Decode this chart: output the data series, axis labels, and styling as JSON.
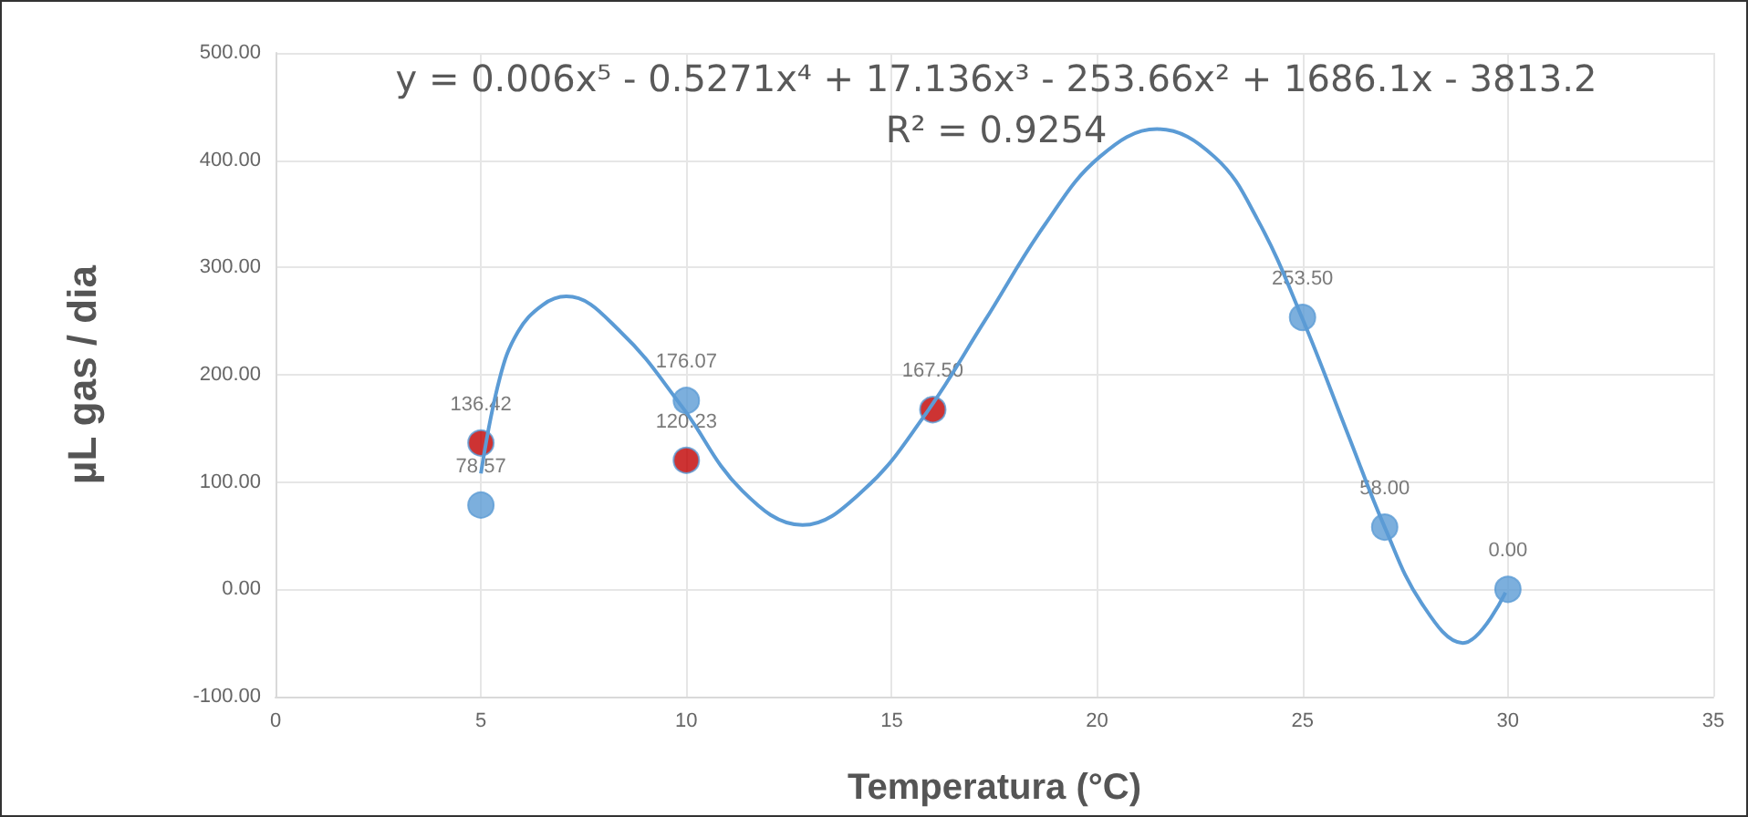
{
  "chart_data": {
    "type": "scatter",
    "xlabel": "Temperatura (°C)",
    "ylabel": "µL gas / dia",
    "annotations": [
      "y = 0.006x⁵ - 0.5271x⁴ + 17.136x³ - 253.66x² + 1686.1x - 3813.2",
      "R² = 0.9254"
    ],
    "xlim": [
      0,
      35
    ],
    "xticks": [
      0,
      5,
      10,
      15,
      20,
      25,
      30,
      35
    ],
    "ylim": [
      -100,
      500
    ],
    "yticks": [
      {
        "value": -100,
        "label": "-100.00"
      },
      {
        "value": 0,
        "label": "0.00"
      },
      {
        "value": 100,
        "label": "100.00"
      },
      {
        "value": 200,
        "label": "200.00"
      },
      {
        "value": 300,
        "label": "300.00"
      },
      {
        "value": 400,
        "label": "400.00"
      },
      {
        "value": 500,
        "label": "500.00"
      }
    ],
    "grid": true,
    "marker": "circle",
    "series": [
      {
        "color": "#5b9bd5",
        "x": [
          5,
          10,
          25,
          27,
          30
        ],
        "values": [
          78.57,
          176.07,
          253.5,
          58,
          0
        ],
        "value_labels": [
          "78.57",
          "176.07",
          "253.50",
          "58.00",
          "0.00"
        ]
      },
      {
        "color": "#c00000",
        "x": [
          5,
          10,
          16
        ],
        "values": [
          136.42,
          120.23,
          167.5
        ],
        "value_labels": [
          "136.42",
          "120.23",
          "167.50"
        ]
      },
      {
        "type": "line",
        "color": "#5b9bd5",
        "marker": "none",
        "x": [
          5,
          5.46,
          5.9,
          6.5,
          7.08,
          8.4,
          9.88,
          11.36,
          12.83,
          14.3,
          15.78,
          17.26,
          18.73,
          20.06,
          21.46,
          22.86,
          23.9,
          25,
          26.1,
          27,
          27.9,
          28.9,
          29.94
        ],
        "values": [
          108,
          197,
          240,
          265,
          273,
          240,
          171,
          92,
          60,
          92,
          161,
          250,
          340,
          403,
          429,
          403,
          345,
          252,
          145,
          58,
          -13,
          -50,
          -3
        ]
      }
    ]
  }
}
